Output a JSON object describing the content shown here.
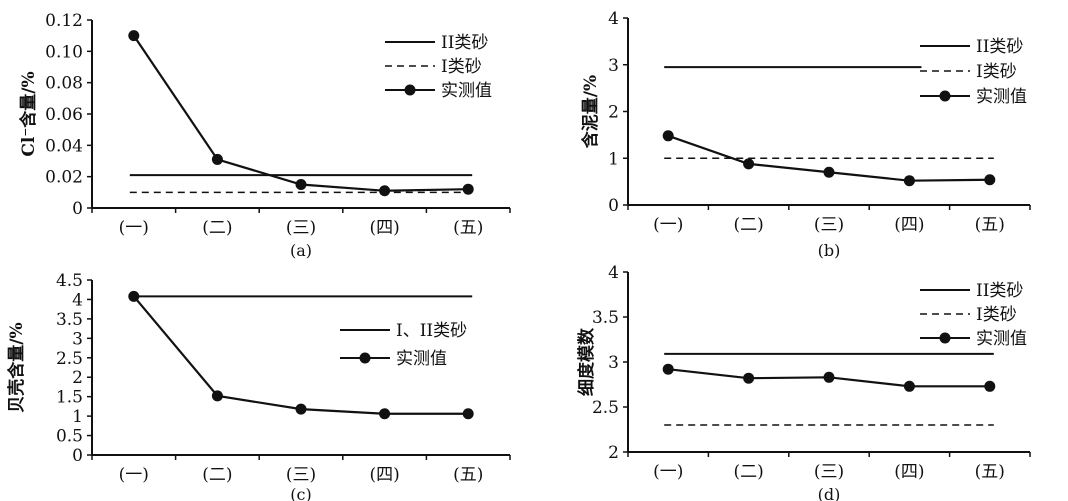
{
  "charts": [
    {
      "type": "line",
      "caption": "(a)",
      "ylabel": "Cl⁻含量/%",
      "categories": [
        "(一)",
        "(二)",
        "(三)",
        "(四)",
        "(五)"
      ],
      "ylim": [
        0,
        0.12
      ],
      "yticks": [
        "0",
        "0.02",
        "0.04",
        "0.06",
        "0.08",
        "0.10",
        "0.12"
      ],
      "yticks_values": [
        0,
        0.02,
        0.04,
        0.06,
        0.08,
        0.1,
        0.12
      ],
      "grid": false,
      "legend_position": "top-right",
      "series": [
        {
          "name": "II类砂",
          "style": "solid",
          "values": [
            0.021,
            0.021,
            0.021,
            0.021,
            0.021
          ]
        },
        {
          "name": "I类砂",
          "style": "dashed",
          "values": [
            0.01,
            0.01,
            0.01,
            0.01,
            0.01
          ]
        },
        {
          "name": "实测值",
          "style": "marker",
          "values": [
            0.11,
            0.031,
            0.015,
            0.011,
            0.012
          ]
        }
      ]
    },
    {
      "type": "line",
      "caption": "(b)",
      "ylabel": "含泥量/%",
      "categories": [
        "(一)",
        "(二)",
        "(三)",
        "(四)",
        "(五)"
      ],
      "ylim": [
        0,
        4
      ],
      "yticks": [
        "0",
        "1",
        "2",
        "3",
        "4"
      ],
      "yticks_values": [
        0,
        1,
        2,
        3,
        4
      ],
      "grid": false,
      "legend_position": "top-right",
      "series": [
        {
          "name": "II类砂",
          "style": "solid",
          "values": [
            2.95,
            2.95,
            2.95,
            2.95,
            null
          ]
        },
        {
          "name": "I类砂",
          "style": "dashed",
          "values": [
            1.0,
            1.0,
            1.0,
            1.0,
            1.0
          ]
        },
        {
          "name": "实测值",
          "style": "marker",
          "values": [
            1.48,
            0.88,
            0.7,
            0.52,
            0.54
          ]
        }
      ]
    },
    {
      "type": "line",
      "caption": "(c)",
      "ylabel": "贝壳含量/%",
      "categories": [
        "(一)",
        "(二)",
        "(三)",
        "(四)",
        "(五)"
      ],
      "ylim": [
        0,
        4.5
      ],
      "yticks": [
        "0",
        "0.5",
        "1",
        "1.5",
        "2",
        "2.5",
        "3",
        "3.5",
        "4",
        "4.5"
      ],
      "yticks_values": [
        0,
        0.5,
        1,
        1.5,
        2,
        2.5,
        3,
        3.5,
        4,
        4.5
      ],
      "grid": false,
      "legend_position": "right",
      "series": [
        {
          "name": "I、II类砂",
          "style": "solid",
          "values": [
            4.08,
            4.08,
            4.08,
            4.08,
            4.08
          ]
        },
        {
          "name": "实测值",
          "style": "marker",
          "values": [
            4.08,
            1.52,
            1.18,
            1.06,
            1.06
          ]
        }
      ]
    },
    {
      "type": "line",
      "caption": "(d)",
      "ylabel": "细度模数",
      "categories": [
        "(一)",
        "(二)",
        "(三)",
        "(四)",
        "(五)"
      ],
      "ylim": [
        2,
        4
      ],
      "yticks": [
        "2",
        "2.5",
        "3",
        "3.5",
        "4"
      ],
      "yticks_values": [
        2,
        2.5,
        3,
        3.5,
        4
      ],
      "grid": false,
      "legend_position": "top-right",
      "series": [
        {
          "name": "II类砂",
          "style": "solid",
          "values": [
            3.09,
            3.09,
            3.09,
            3.09,
            3.09
          ]
        },
        {
          "name": "I类砂",
          "style": "dashed",
          "values": [
            2.3,
            2.3,
            2.3,
            2.3,
            2.3
          ]
        },
        {
          "name": "实测值",
          "style": "marker",
          "values": [
            2.92,
            2.82,
            2.83,
            2.73,
            2.73
          ]
        }
      ]
    }
  ]
}
